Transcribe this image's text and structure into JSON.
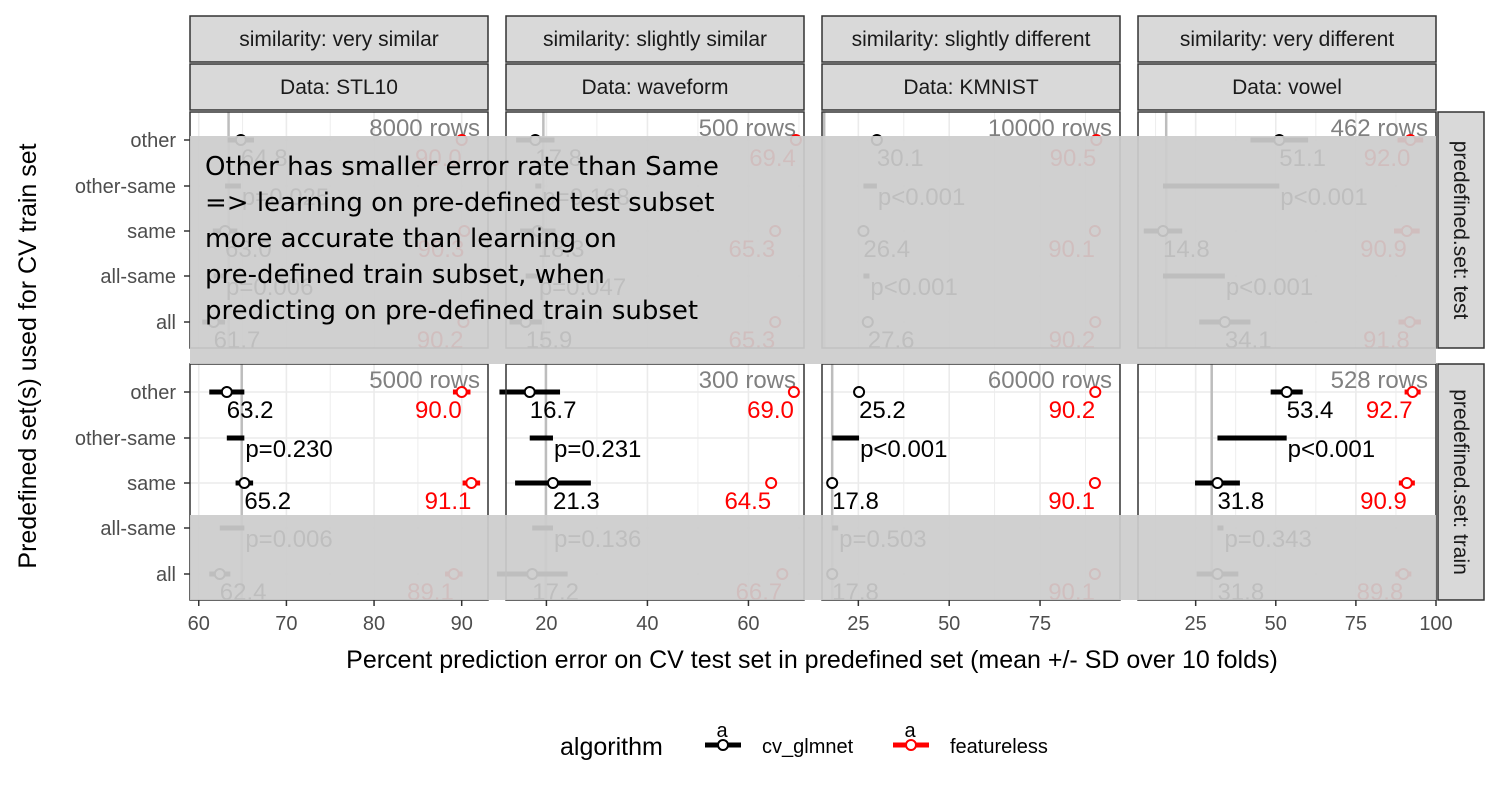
{
  "chart_data": {
    "type": "scatter",
    "subtype": "faceted dot-and-errorbar plot",
    "xlabel": "Percent prediction error on CV test set in predefined set (mean +/- SD over 10 folds)",
    "ylabel": "Predefined set(s) used for CV train set",
    "y_categories": [
      "other",
      "other-same",
      "same",
      "all-same",
      "all"
    ],
    "columns": [
      {
        "similarity": "similarity: very similar",
        "data": "Data: STL10",
        "xlim": [
          59,
          93
        ],
        "ticks": [
          60,
          70,
          80,
          90
        ]
      },
      {
        "similarity": "similarity: slightly similar",
        "data": "Data: waveform",
        "xlim": [
          12,
          71
        ],
        "ticks": [
          20,
          40,
          60
        ]
      },
      {
        "similarity": "similarity: slightly different",
        "data": "Data: KMNIST",
        "xlim": [
          15,
          97
        ],
        "ticks": [
          25,
          50,
          75
        ]
      },
      {
        "similarity": "similarity: very different",
        "data": "Data: vowel",
        "xlim": [
          7,
          100
        ],
        "ticks": [
          25,
          50,
          75,
          100
        ]
      }
    ],
    "rows": [
      "predefined.set: test",
      "predefined.set: train"
    ],
    "grid": true,
    "legend": {
      "title": "algorithm",
      "position": "bottom",
      "key_glyph": "a",
      "entries": [
        {
          "name": "cv_glmnet",
          "color": "#000000"
        },
        {
          "name": "featureless",
          "color": "#ff0000"
        }
      ]
    },
    "panels": [
      {
        "row": 0,
        "col": 0,
        "rows_text": "8000 rows",
        "ref": 63.4,
        "glmnet": {
          "other": {
            "mean": 64.8,
            "sd": 1.5,
            "label": "64.8"
          },
          "same": {
            "mean": 63.0,
            "sd": 1.4,
            "label": "63.0"
          },
          "all": {
            "mean": 61.7,
            "sd": 1.3,
            "label": "61.7"
          }
        },
        "featureless": {
          "other": {
            "mean": 90.0,
            "sd": 0.4,
            "label": "90.0"
          },
          "same": {
            "mean": 90.3,
            "sd": 0.4,
            "label": "90.3"
          },
          "all": {
            "mean": 90.2,
            "sd": 0.4,
            "label": "90.2"
          }
        },
        "pvals": {
          "other-same": {
            "lo": 63.0,
            "hi": 64.8,
            "label": "p=0.025"
          },
          "all-same": {
            "lo": 61.7,
            "hi": 63.0,
            "label": "p=0.006"
          }
        }
      },
      {
        "row": 0,
        "col": 1,
        "rows_text": "500 rows",
        "ref": 19.4,
        "glmnet": {
          "other": {
            "mean": 17.8,
            "sd": 3.8,
            "label": "17.8"
          },
          "same": {
            "mean": 18.3,
            "sd": 3.5,
            "label": "18.3"
          },
          "all": {
            "mean": 15.9,
            "sd": 3.2,
            "label": "15.9"
          }
        },
        "featureless": {
          "other": {
            "mean": 69.4,
            "sd": 0.6,
            "label": "69.4"
          },
          "same": {
            "mean": 65.3,
            "sd": 0.6,
            "label": "65.3"
          },
          "all": {
            "mean": 65.3,
            "sd": 0.6,
            "label": "65.3"
          }
        },
        "pvals": {
          "other-same": {
            "lo": 17.8,
            "hi": 18.3,
            "label": "p=0.168"
          },
          "all-same": {
            "lo": 15.9,
            "hi": 18.3,
            "label": "p=0.047"
          }
        }
      },
      {
        "row": 0,
        "col": 2,
        "rows_text": "10000 rows",
        "ref": 15.6,
        "glmnet": {
          "other": {
            "mean": 30.1,
            "sd": 1.2,
            "label": "30.1"
          },
          "same": {
            "mean": 26.4,
            "sd": 1.0,
            "label": "26.4"
          },
          "all": {
            "mean": 27.6,
            "sd": 1.0,
            "label": "27.6"
          }
        },
        "featureless": {
          "other": {
            "mean": 90.5,
            "sd": 0.4,
            "label": "90.5"
          },
          "same": {
            "mean": 90.1,
            "sd": 0.4,
            "label": "90.1"
          },
          "all": {
            "mean": 90.2,
            "sd": 0.4,
            "label": "90.2"
          }
        },
        "pvals": {
          "other-same": {
            "lo": 26.4,
            "hi": 30.1,
            "label": "p<0.001"
          },
          "all-same": {
            "lo": 26.4,
            "hi": 27.6,
            "label": "p<0.001"
          }
        }
      },
      {
        "row": 0,
        "col": 3,
        "rows_text": "462 rows",
        "ref": 15.8,
        "glmnet": {
          "other": {
            "mean": 51.1,
            "sd": 9.0,
            "label": "51.1"
          },
          "same": {
            "mean": 14.8,
            "sd": 6.0,
            "label": "14.8"
          },
          "all": {
            "mean": 34.1,
            "sd": 8.0,
            "label": "34.1"
          }
        },
        "featureless": {
          "other": {
            "mean": 92.0,
            "sd": 4.0,
            "label": "92.0"
          },
          "same": {
            "mean": 90.9,
            "sd": 4.0,
            "label": "90.9"
          },
          "all": {
            "mean": 91.8,
            "sd": 3.5,
            "label": "91.8"
          }
        },
        "pvals": {
          "other-same": {
            "lo": 14.8,
            "hi": 51.1,
            "label": "p<0.001"
          },
          "all-same": {
            "lo": 14.8,
            "hi": 34.1,
            "label": "p<0.001"
          }
        }
      },
      {
        "row": 1,
        "col": 0,
        "rows_text": "5000 rows",
        "ref": 64.9,
        "glmnet": {
          "other": {
            "mean": 63.2,
            "sd": 2.0,
            "label": "63.2"
          },
          "same": {
            "mean": 65.2,
            "sd": 1.0,
            "label": "65.2"
          },
          "all": {
            "mean": 62.4,
            "sd": 1.2,
            "label": "62.4"
          }
        },
        "featureless": {
          "other": {
            "mean": 90.0,
            "sd": 1.0,
            "label": "90.0"
          },
          "same": {
            "mean": 91.1,
            "sd": 1.0,
            "label": "91.1"
          },
          "all": {
            "mean": 89.1,
            "sd": 1.0,
            "label": "89.1"
          }
        },
        "pvals": {
          "other-same": {
            "lo": 63.2,
            "hi": 65.2,
            "label": "p=0.230"
          },
          "all-same": {
            "lo": 62.4,
            "hi": 65.2,
            "label": "p=0.006"
          }
        }
      },
      {
        "row": 1,
        "col": 1,
        "rows_text": "300 rows",
        "ref": 19.9,
        "glmnet": {
          "other": {
            "mean": 16.7,
            "sd": 6.0,
            "label": "16.7"
          },
          "same": {
            "mean": 21.3,
            "sd": 7.5,
            "label": "21.3"
          },
          "all": {
            "mean": 17.2,
            "sd": 7.0,
            "label": "17.2"
          }
        },
        "featureless": {
          "other": {
            "mean": 69.0,
            "sd": 0.6,
            "label": "69.0"
          },
          "same": {
            "mean": 64.5,
            "sd": 0.6,
            "label": "64.5"
          },
          "all": {
            "mean": 66.7,
            "sd": 0.6,
            "label": "66.7"
          }
        },
        "pvals": {
          "other-same": {
            "lo": 16.7,
            "hi": 21.3,
            "label": "p=0.231"
          },
          "all-same": {
            "lo": 17.2,
            "hi": 21.3,
            "label": "p=0.136"
          }
        }
      },
      {
        "row": 1,
        "col": 2,
        "rows_text": "60000 rows",
        "ref": 17.8,
        "glmnet": {
          "other": {
            "mean": 25.2,
            "sd": 0.2,
            "label": "25.2"
          },
          "same": {
            "mean": 17.8,
            "sd": 0.2,
            "label": "17.8"
          },
          "all": {
            "mean": 17.8,
            "sd": 0.2,
            "label": "17.8"
          }
        },
        "featureless": {
          "other": {
            "mean": 90.2,
            "sd": 0.2,
            "label": "90.2"
          },
          "same": {
            "mean": 90.1,
            "sd": 0.2,
            "label": "90.1"
          },
          "all": {
            "mean": 90.1,
            "sd": 0.2,
            "label": "90.1"
          }
        },
        "pvals": {
          "other-same": {
            "lo": 17.8,
            "hi": 25.2,
            "label": "p<0.001"
          },
          "all-same": {
            "lo": 17.8,
            "hi": 17.8,
            "label": "p=0.503"
          }
        }
      },
      {
        "row": 1,
        "col": 3,
        "rows_text": "528 rows",
        "ref": 30.0,
        "glmnet": {
          "other": {
            "mean": 53.4,
            "sd": 5.0,
            "label": "53.4"
          },
          "same": {
            "mean": 31.8,
            "sd": 7.0,
            "label": "31.8"
          },
          "all": {
            "mean": 31.8,
            "sd": 6.5,
            "label": "31.8"
          }
        },
        "featureless": {
          "other": {
            "mean": 92.7,
            "sd": 2.5,
            "label": "92.7"
          },
          "same": {
            "mean": 90.9,
            "sd": 2.5,
            "label": "90.9"
          },
          "all": {
            "mean": 89.8,
            "sd": 2.5,
            "label": "89.8"
          }
        },
        "pvals": {
          "other-same": {
            "lo": 31.8,
            "hi": 53.4,
            "label": "p<0.001"
          },
          "all-same": {
            "lo": 31.8,
            "hi": 31.8,
            "label": "p=0.343"
          }
        }
      }
    ],
    "annotations": [
      {
        "row": 0,
        "lines": [
          "Other has smaller error rate than Same",
          "=> learning on pre-defined test subset",
          "more accurate than learning on",
          "pre-defined train subset, when",
          "predicting on pre-defined train subset"
        ]
      },
      {
        "row": 1,
        "covers": [
          "all-same",
          "all"
        ],
        "lines": []
      }
    ]
  }
}
